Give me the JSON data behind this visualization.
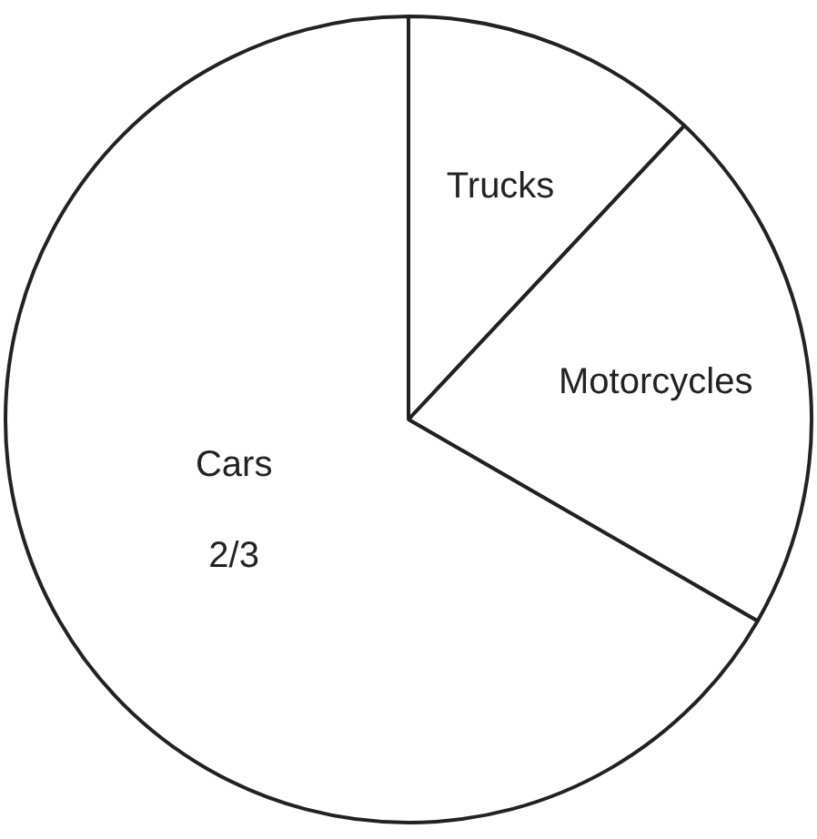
{
  "chart_data": {
    "type": "pie",
    "categories": [
      "Trucks",
      "Motorcycles",
      "Cars"
    ],
    "values": [
      0.12,
      0.2133,
      0.6667
    ],
    "colors": [
      "#ffffff",
      "#ffffff",
      "#ffffff"
    ],
    "value_labels": [
      null,
      null,
      "2/3"
    ],
    "legend": false
  }
}
